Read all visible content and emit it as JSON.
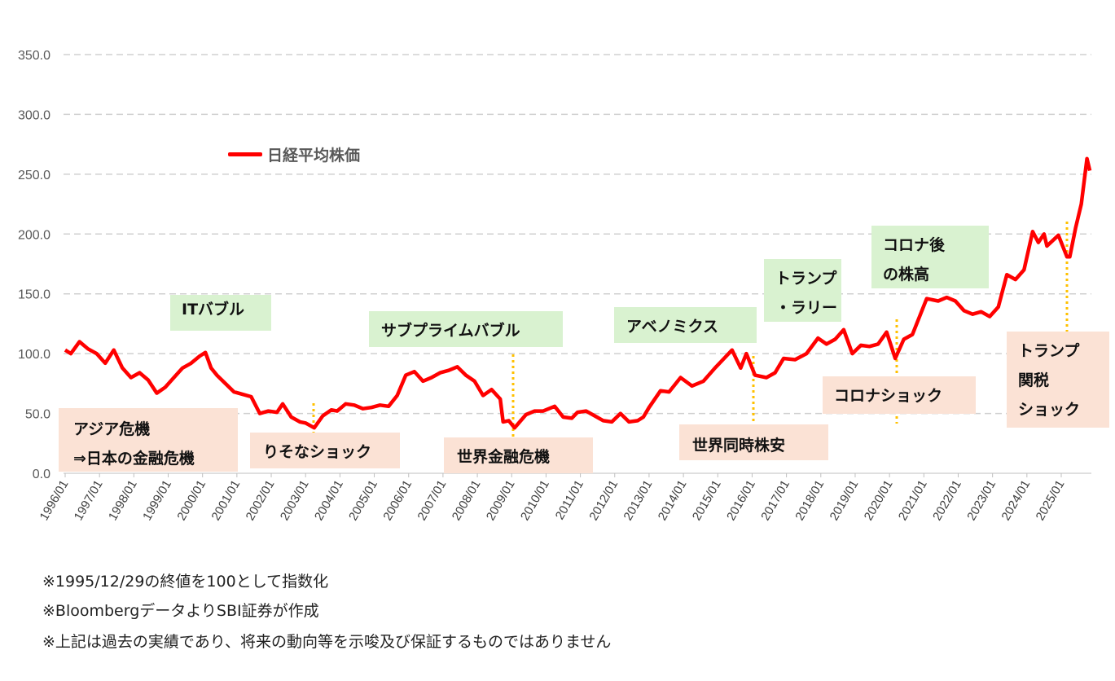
{
  "chart_data": {
    "type": "line",
    "title": "",
    "xlabel": "",
    "ylabel": "",
    "ylim": [
      0,
      350
    ],
    "yticks": [
      "0.0",
      "50.0",
      "100.0",
      "150.0",
      "200.0",
      "250.0",
      "300.0",
      "350.0"
    ],
    "xticks": [
      "1996/01",
      "1997/01",
      "1998/01",
      "1999/01",
      "2000/01",
      "2001/01",
      "2002/01",
      "2003/01",
      "2004/01",
      "2005/01",
      "2006/01",
      "2007/01",
      "2008/01",
      "2009/01",
      "2010/01",
      "2011/01",
      "2012/01",
      "2013/01",
      "2014/01",
      "2015/01",
      "2016/01",
      "2017/01",
      "2018/01",
      "2019/01",
      "2020/01",
      "2021/01",
      "2022/01",
      "2023/01",
      "2024/01",
      "2025/01"
    ],
    "grid": true,
    "legend_position": "top-left",
    "series": [
      {
        "name": "日経平均株価",
        "color": "#ff0000",
        "x": [
          "1996/01",
          "1996/03",
          "1996/06",
          "1996/09",
          "1996/12",
          "1997/03",
          "1997/06",
          "1997/09",
          "1997/12",
          "1998/03",
          "1998/06",
          "1998/09",
          "1998/12",
          "1999/03",
          "1999/06",
          "1999/09",
          "1999/12",
          "2000/02",
          "2000/04",
          "2000/06",
          "2000/09",
          "2000/12",
          "2001/03",
          "2001/06",
          "2001/09",
          "2001/12",
          "2002/03",
          "2002/05",
          "2002/08",
          "2002/11",
          "2003/01",
          "2003/04",
          "2003/07",
          "2003/10",
          "2003/12",
          "2004/03",
          "2004/06",
          "2004/09",
          "2004/12",
          "2005/03",
          "2005/06",
          "2005/09",
          "2005/12",
          "2006/03",
          "2006/06",
          "2006/09",
          "2006/12",
          "2007/03",
          "2007/06",
          "2007/09",
          "2007/12",
          "2008/03",
          "2008/06",
          "2008/09",
          "2008/10",
          "2008/12",
          "2009/02",
          "2009/06",
          "2009/09",
          "2009/12",
          "2010/04",
          "2010/07",
          "2010/10",
          "2010/12",
          "2011/03",
          "2011/06",
          "2011/09",
          "2011/12",
          "2012/03",
          "2012/06",
          "2012/09",
          "2012/11",
          "2013/01",
          "2013/05",
          "2013/08",
          "2013/12",
          "2014/04",
          "2014/08",
          "2014/12",
          "2015/04",
          "2015/06",
          "2015/09",
          "2015/11",
          "2016/02",
          "2016/06",
          "2016/09",
          "2016/12",
          "2017/04",
          "2017/08",
          "2017/12",
          "2018/03",
          "2018/06",
          "2018/09",
          "2018/12",
          "2019/03",
          "2019/06",
          "2019/09",
          "2019/12",
          "2020/03",
          "2020/06",
          "2020/09",
          "2020/12",
          "2021/02",
          "2021/06",
          "2021/09",
          "2021/12",
          "2022/03",
          "2022/06",
          "2022/09",
          "2022/12",
          "2023/03",
          "2023/06",
          "2023/09",
          "2023/12",
          "2024/03",
          "2024/05",
          "2024/07",
          "2024/08",
          "2024/12",
          "2025/03",
          "2025/04",
          "2025/06",
          "2025/08",
          "2025/10",
          "2025/11"
        ],
        "values": [
          103,
          100,
          110,
          104,
          100,
          92,
          103,
          88,
          80,
          84,
          78,
          67,
          72,
          80,
          88,
          92,
          98,
          101,
          88,
          82,
          75,
          68,
          66,
          64,
          50,
          52,
          51,
          58,
          47,
          43,
          42,
          38,
          48,
          53,
          52,
          58,
          57,
          54,
          55,
          57,
          56,
          65,
          82,
          85,
          77,
          80,
          84,
          86,
          89,
          82,
          77,
          65,
          70,
          62,
          43,
          44,
          38,
          49,
          52,
          52,
          56,
          47,
          46,
          51,
          52,
          48,
          44,
          43,
          50,
          43,
          44,
          47,
          55,
          69,
          68,
          80,
          73,
          77,
          88,
          98,
          103,
          88,
          100,
          82,
          80,
          84,
          96,
          95,
          100,
          113,
          108,
          112,
          120,
          100,
          107,
          106,
          108,
          118,
          96,
          112,
          116,
          134,
          146,
          144,
          147,
          144,
          136,
          133,
          135,
          131,
          139,
          166,
          162,
          170,
          202,
          193,
          200,
          190,
          199,
          181,
          181,
          205,
          225,
          263,
          253
        ]
      }
    ]
  },
  "annotations": {
    "it_bubble": "ITバブル",
    "subprime": "サブプライムバブル",
    "abenomics": "アベノミクス",
    "trump_rally_1": "トランプ",
    "trump_rally_2": "・ラリー",
    "post_corona_1": "コロナ後",
    "post_corona_2": "の株高",
    "asia_1": "アジア危機",
    "asia_2": "⇒日本の金融危機",
    "resona": "りそなショック",
    "gfc": "世界金融危機",
    "global_selloff": "世界同時株安",
    "corona_shock": "コロナショック",
    "tariff_1": "トランプ",
    "tariff_2": "関税",
    "tariff_3": "ショック"
  },
  "notes": [
    "※1995/12/29の終値を100として指数化",
    "※BloombergデータよりSBI証券が作成",
    "※上記は過去の実績であり、将来の動向等を示唆及び保証するものではありません"
  ]
}
